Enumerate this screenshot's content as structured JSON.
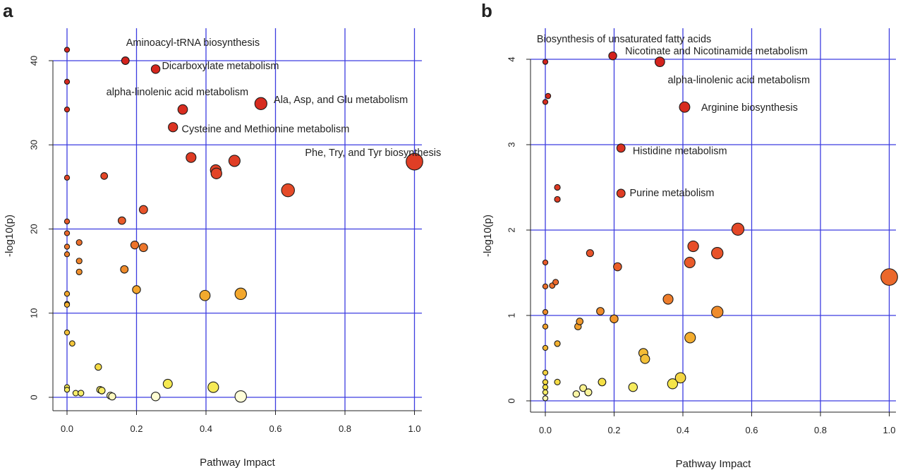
{
  "panels": [
    {
      "letter": "a"
    },
    {
      "letter": "b"
    }
  ],
  "chart_data": [
    {
      "type": "scatter",
      "panel": "a",
      "title": "",
      "xlabel": "Pathway Impact",
      "ylabel": "-log10(p)",
      "xlim": [
        -0.04,
        1.02
      ],
      "ylim": [
        -1.5,
        43.5
      ],
      "xticks": [
        0.0,
        0.2,
        0.4,
        0.6,
        0.8,
        1.0
      ],
      "yticks": [
        0,
        10,
        20,
        30,
        40
      ],
      "grid": true,
      "grid_color": "#3c3ce0",
      "size_encodes": "Pathway Impact",
      "color_encodes": "-log10(p) (yellow = low, red = high)",
      "color_scale": [
        "#ffffe4",
        "#f5e84a",
        "#f3a72c",
        "#e8502a",
        "#d21f1c"
      ],
      "points": [
        {
          "x": 0.0,
          "y": 41.3,
          "c": 0.98
        },
        {
          "x": 0.0,
          "y": 37.5,
          "c": 0.95
        },
        {
          "x": 0.0,
          "y": 34.2,
          "c": 0.93
        },
        {
          "x": 0.0,
          "y": 26.1,
          "c": 0.8
        },
        {
          "x": 0.0,
          "y": 20.9,
          "c": 0.72
        },
        {
          "x": 0.0,
          "y": 19.5,
          "c": 0.68
        },
        {
          "x": 0.0,
          "y": 17.9,
          "c": 0.64
        },
        {
          "x": 0.0,
          "y": 17.0,
          "c": 0.62
        },
        {
          "x": 0.0,
          "y": 12.3,
          "c": 0.5
        },
        {
          "x": 0.0,
          "y": 11.1,
          "c": 0.47
        },
        {
          "x": 0.0,
          "y": 11.0,
          "c": 0.47
        },
        {
          "x": 0.0,
          "y": 7.7,
          "c": 0.4
        },
        {
          "x": 0.0,
          "y": 1.2,
          "c": 0.24
        },
        {
          "x": 0.0,
          "y": 0.9,
          "c": 0.22
        },
        {
          "x": 0.015,
          "y": 6.4,
          "c": 0.38
        },
        {
          "x": 0.025,
          "y": 0.5,
          "c": 0.2
        },
        {
          "x": 0.035,
          "y": 18.4,
          "c": 0.66
        },
        {
          "x": 0.035,
          "y": 16.2,
          "c": 0.6
        },
        {
          "x": 0.035,
          "y": 14.9,
          "c": 0.57
        },
        {
          "x": 0.04,
          "y": 0.5,
          "c": 0.2
        },
        {
          "x": 0.09,
          "y": 3.6,
          "c": 0.3
        },
        {
          "x": 0.095,
          "y": 0.9,
          "c": 0.22
        },
        {
          "x": 0.1,
          "y": 0.8,
          "c": 0.21
        },
        {
          "x": 0.107,
          "y": 26.3,
          "c": 0.8
        },
        {
          "x": 0.125,
          "y": 0.2,
          "c": 0.08
        },
        {
          "x": 0.13,
          "y": 0.1,
          "c": 0.06
        },
        {
          "x": 0.158,
          "y": 21.0,
          "c": 0.72
        },
        {
          "x": 0.165,
          "y": 15.2,
          "c": 0.58
        },
        {
          "x": 0.168,
          "y": 40.0,
          "c": 0.98
        },
        {
          "x": 0.195,
          "y": 18.1,
          "c": 0.65
        },
        {
          "x": 0.2,
          "y": 12.8,
          "c": 0.51
        },
        {
          "x": 0.22,
          "y": 22.3,
          "c": 0.74
        },
        {
          "x": 0.22,
          "y": 17.8,
          "c": 0.64
        },
        {
          "x": 0.255,
          "y": 0.1,
          "c": 0.03
        },
        {
          "x": 0.255,
          "y": 39.0,
          "c": 0.96
        },
        {
          "x": 0.29,
          "y": 1.6,
          "c": 0.24
        },
        {
          "x": 0.305,
          "y": 32.1,
          "c": 0.9
        },
        {
          "x": 0.333,
          "y": 34.2,
          "c": 0.93
        },
        {
          "x": 0.357,
          "y": 28.5,
          "c": 0.85
        },
        {
          "x": 0.397,
          "y": 12.1,
          "c": 0.49
        },
        {
          "x": 0.421,
          "y": 1.2,
          "c": 0.23
        },
        {
          "x": 0.428,
          "y": 27.0,
          "c": 0.82
        },
        {
          "x": 0.43,
          "y": 26.6,
          "c": 0.81
        },
        {
          "x": 0.482,
          "y": 28.1,
          "c": 0.84
        },
        {
          "x": 0.5,
          "y": 12.3,
          "c": 0.5
        },
        {
          "x": 0.5,
          "y": 0.1,
          "c": 0.02
        },
        {
          "x": 0.558,
          "y": 34.9,
          "c": 0.94
        },
        {
          "x": 0.636,
          "y": 24.6,
          "c": 0.78
        },
        {
          "x": 1.0,
          "y": 28.0,
          "c": 0.84
        }
      ],
      "annotations": [
        {
          "text": "Aminoacyl-tRNA biosynthesis",
          "x": 0.17,
          "y": 42.1
        },
        {
          "text": "Dicarboxylate metabolism",
          "x": 0.273,
          "y": 39.3
        },
        {
          "text": "alpha-linolenic acid metabolism",
          "x": 0.113,
          "y": 36.2
        },
        {
          "text": "Ala, Asp, and Glu metabolism",
          "x": 0.595,
          "y": 35.3
        },
        {
          "text": "Cysteine and Methionine metabolism",
          "x": 0.33,
          "y": 31.8
        },
        {
          "text": "Phe, Try, and Tyr biosynthesis",
          "x": 0.685,
          "y": 29.0
        }
      ]
    },
    {
      "type": "scatter",
      "panel": "b",
      "title": "",
      "xlabel": "Pathway Impact",
      "ylabel": "-log10(p)",
      "xlim": [
        -0.04,
        1.02
      ],
      "ylim": [
        -0.1,
        4.3
      ],
      "xticks": [
        0.0,
        0.2,
        0.4,
        0.6,
        0.8,
        1.0
      ],
      "yticks": [
        0,
        1,
        2,
        3,
        4
      ],
      "grid": true,
      "grid_color": "#3c3ce0",
      "size_encodes": "Pathway Impact",
      "color_encodes": "-log10(p) (yellow = low, red = high)",
      "color_scale": [
        "#ffffe4",
        "#f5e84a",
        "#f3a72c",
        "#e8502a",
        "#d21f1c"
      ],
      "points": [
        {
          "x": 0.0,
          "y": 3.97,
          "c": 0.98
        },
        {
          "x": 0.0,
          "y": 3.5,
          "c": 0.94
        },
        {
          "x": 0.0,
          "y": 1.62,
          "c": 0.72
        },
        {
          "x": 0.0,
          "y": 1.34,
          "c": 0.66
        },
        {
          "x": 0.0,
          "y": 1.04,
          "c": 0.58
        },
        {
          "x": 0.0,
          "y": 0.87,
          "c": 0.52
        },
        {
          "x": 0.0,
          "y": 0.62,
          "c": 0.44
        },
        {
          "x": 0.0,
          "y": 0.33,
          "c": 0.34
        },
        {
          "x": 0.0,
          "y": 0.22,
          "c": 0.3
        },
        {
          "x": 0.0,
          "y": 0.16,
          "c": 0.26
        },
        {
          "x": 0.0,
          "y": 0.1,
          "c": 0.2
        },
        {
          "x": 0.0,
          "y": 0.03,
          "c": 0.08
        },
        {
          "x": 0.008,
          "y": 3.57,
          "c": 0.95
        },
        {
          "x": 0.02,
          "y": 1.35,
          "c": 0.66
        },
        {
          "x": 0.03,
          "y": 1.39,
          "c": 0.68
        },
        {
          "x": 0.035,
          "y": 2.5,
          "c": 0.86
        },
        {
          "x": 0.035,
          "y": 2.36,
          "c": 0.84
        },
        {
          "x": 0.035,
          "y": 0.67,
          "c": 0.46
        },
        {
          "x": 0.035,
          "y": 0.22,
          "c": 0.3
        },
        {
          "x": 0.09,
          "y": 0.08,
          "c": 0.1
        },
        {
          "x": 0.095,
          "y": 0.87,
          "c": 0.52
        },
        {
          "x": 0.1,
          "y": 0.93,
          "c": 0.54
        },
        {
          "x": 0.11,
          "y": 0.15,
          "c": 0.14
        },
        {
          "x": 0.125,
          "y": 0.1,
          "c": 0.12
        },
        {
          "x": 0.13,
          "y": 1.73,
          "c": 0.74
        },
        {
          "x": 0.16,
          "y": 1.05,
          "c": 0.58
        },
        {
          "x": 0.165,
          "y": 0.22,
          "c": 0.28
        },
        {
          "x": 0.196,
          "y": 4.04,
          "c": 0.99
        },
        {
          "x": 0.2,
          "y": 0.96,
          "c": 0.55
        },
        {
          "x": 0.21,
          "y": 1.57,
          "c": 0.71
        },
        {
          "x": 0.22,
          "y": 2.96,
          "c": 0.91
        },
        {
          "x": 0.22,
          "y": 2.43,
          "c": 0.85
        },
        {
          "x": 0.255,
          "y": 0.16,
          "c": 0.22
        },
        {
          "x": 0.285,
          "y": 0.56,
          "c": 0.42
        },
        {
          "x": 0.29,
          "y": 0.49,
          "c": 0.4
        },
        {
          "x": 0.333,
          "y": 3.97,
          "c": 0.98
        },
        {
          "x": 0.357,
          "y": 1.19,
          "c": 0.62
        },
        {
          "x": 0.37,
          "y": 0.2,
          "c": 0.26
        },
        {
          "x": 0.393,
          "y": 0.27,
          "c": 0.32
        },
        {
          "x": 0.405,
          "y": 3.44,
          "c": 0.94
        },
        {
          "x": 0.42,
          "y": 1.62,
          "c": 0.72
        },
        {
          "x": 0.421,
          "y": 0.74,
          "c": 0.48
        },
        {
          "x": 0.43,
          "y": 1.81,
          "c": 0.76
        },
        {
          "x": 0.5,
          "y": 1.73,
          "c": 0.74
        },
        {
          "x": 0.5,
          "y": 1.04,
          "c": 0.58
        },
        {
          "x": 0.56,
          "y": 2.01,
          "c": 0.79
        },
        {
          "x": 1.0,
          "y": 1.45,
          "c": 0.68
        }
      ],
      "annotations": [
        {
          "text": "Biosynthesis of unsaturated fatty acids",
          "x": -0.025,
          "y": 4.23
        },
        {
          "text": "Nicotinate and Nicotinamide metabolism",
          "x": 0.232,
          "y": 4.09
        },
        {
          "text": "alpha-linolenic acid metabolism",
          "x": 0.356,
          "y": 3.75
        },
        {
          "text": "Arginine biosynthesis",
          "x": 0.453,
          "y": 3.43
        },
        {
          "text": "Histidine metabolism",
          "x": 0.254,
          "y": 2.92
        },
        {
          "text": "Purine metabolism",
          "x": 0.245,
          "y": 2.43
        }
      ]
    }
  ]
}
